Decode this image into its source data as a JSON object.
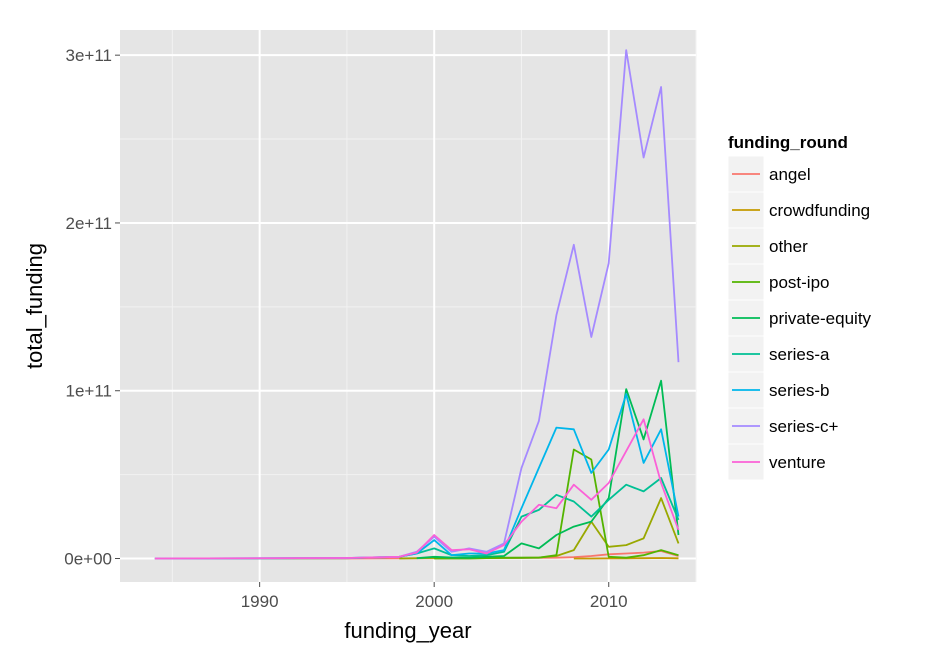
{
  "chart_data": {
    "type": "line",
    "xlabel": "funding_year",
    "ylabel": "total_funding",
    "xlim": [
      1982,
      2015
    ],
    "ylim": [
      -14000000000.0,
      315000000000.0
    ],
    "x_ticks": [
      1990,
      2000,
      2010
    ],
    "x_tick_labels": [
      "1990",
      "2000",
      "2010"
    ],
    "y_ticks": [
      0,
      100000000000,
      200000000000,
      300000000000
    ],
    "y_tick_labels": [
      "0e+00",
      "1e+11",
      "2e+11",
      "3e+11"
    ],
    "grid": true,
    "legend": {
      "title": "funding_round",
      "position": "right"
    },
    "background": "#e5e5e5",
    "grid_color": "#ffffff",
    "series": [
      {
        "name": "angel",
        "color": "#F8766D",
        "x": [
          1984,
          1990,
          1995,
          2000,
          2005,
          2007,
          2008,
          2009,
          2010,
          2011,
          2012,
          2013,
          2014
        ],
        "y": [
          0,
          0,
          0,
          200000000.0,
          300000000.0,
          500000000.0,
          800000000.0,
          1500000000.0,
          2500000000.0,
          3000000000.0,
          3500000000.0,
          4500000000.0,
          1500000000.0
        ]
      },
      {
        "name": "crowdfunding",
        "color": "#C49A00",
        "x": [
          2008,
          2009,
          2010,
          2011,
          2012,
          2013,
          2014
        ],
        "y": [
          0,
          0,
          50000000.0,
          100000000.0,
          200000000.0,
          300000000.0,
          100000000.0
        ]
      },
      {
        "name": "other",
        "color": "#99A800",
        "x": [
          1998,
          2000,
          2002,
          2004,
          2005,
          2006,
          2007,
          2008,
          2009,
          2010,
          2011,
          2012,
          2013,
          2014
        ],
        "y": [
          0,
          300000000.0,
          200000000.0,
          300000000.0,
          400000000.0,
          600000000.0,
          1500000000.0,
          5000000000.0,
          22000000000.0,
          7000000000.0,
          8000000000.0,
          12000000000.0,
          36000000000.0,
          9000000000.0
        ]
      },
      {
        "name": "post-ipo",
        "color": "#53B400",
        "x": [
          2000,
          2002,
          2004,
          2005,
          2006,
          2007,
          2008,
          2009,
          2010,
          2011,
          2012,
          2013,
          2014
        ],
        "y": [
          0,
          0,
          500000000.0,
          500000000.0,
          500000000.0,
          2000000000.0,
          65000000000.0,
          59000000000.0,
          1000000000.0,
          500000000.0,
          2000000000.0,
          5000000000.0,
          2000000000.0
        ]
      },
      {
        "name": "private-equity",
        "color": "#00BC56",
        "x": [
          1999,
          2000,
          2001,
          2002,
          2003,
          2004,
          2005,
          2006,
          2007,
          2008,
          2009,
          2010,
          2011,
          2012,
          2013,
          2014
        ],
        "y": [
          200000000.0,
          1000000000.0,
          600000000.0,
          500000000.0,
          1000000000.0,
          1500000000.0,
          9000000000.0,
          6000000000.0,
          14000000000.0,
          19000000000.0,
          22000000000.0,
          36000000000.0,
          101000000000.0,
          71000000000.0,
          106000000000.0,
          14000000000.0
        ]
      },
      {
        "name": "series-a",
        "color": "#00C094",
        "x": [
          1984,
          1995,
          1998,
          1999,
          2000,
          2001,
          2002,
          2003,
          2004,
          2005,
          2006,
          2007,
          2008,
          2009,
          2010,
          2011,
          2012,
          2013,
          2014
        ],
        "y": [
          0,
          200000000.0,
          1000000000.0,
          3000000000.0,
          6000000000.0,
          2000000000.0,
          1500000000.0,
          2000000000.0,
          4000000000.0,
          25000000000.0,
          29000000000.0,
          38000000000.0,
          34000000000.0,
          25000000000.0,
          35000000000.0,
          44000000000.0,
          40000000000.0,
          48000000000.0,
          23000000000.0
        ]
      },
      {
        "name": "series-b",
        "color": "#00B6EB",
        "x": [
          1984,
          1995,
          1998,
          1999,
          2000,
          2001,
          2002,
          2003,
          2004,
          2005,
          2006,
          2007,
          2008,
          2009,
          2010,
          2011,
          2012,
          2013,
          2014
        ],
        "y": [
          0,
          300000000.0,
          1000000000.0,
          3000000000.0,
          11000000000.0,
          2000000000.0,
          3000000000.0,
          3000000000.0,
          5000000000.0,
          30000000000.0,
          54000000000.0,
          78000000000.0,
          77000000000.0,
          51000000000.0,
          65000000000.0,
          98000000000.0,
          57000000000.0,
          77000000000.0,
          25000000000.0
        ]
      },
      {
        "name": "series-c+",
        "color": "#A58AFF",
        "x": [
          1984,
          1995,
          1998,
          1999,
          2000,
          2001,
          2002,
          2003,
          2004,
          2005,
          2006,
          2007,
          2008,
          2009,
          2010,
          2011,
          2012,
          2013,
          2014
        ],
        "y": [
          0,
          300000000.0,
          1000000000.0,
          4000000000.0,
          13000000000.0,
          4000000000.0,
          6000000000.0,
          4000000000.0,
          9000000000.0,
          54000000000.0,
          82000000000.0,
          145000000000.0,
          187000000000.0,
          132000000000.0,
          176000000000.0,
          303000000000.0,
          239000000000.0,
          281000000000.0,
          117000000000.0
        ]
      },
      {
        "name": "venture",
        "color": "#FB61D7",
        "x": [
          1984,
          1995,
          1998,
          1999,
          2000,
          2001,
          2002,
          2003,
          2004,
          2005,
          2006,
          2007,
          2008,
          2009,
          2010,
          2011,
          2012,
          2013,
          2014
        ],
        "y": [
          0,
          300000000.0,
          1000000000.0,
          3500000000.0,
          14000000000.0,
          5000000000.0,
          5500000000.0,
          3000000000.0,
          8000000000.0,
          22000000000.0,
          32000000000.0,
          30000000000.0,
          44000000000.0,
          35000000000.0,
          45000000000.0,
          64000000000.0,
          83000000000.0,
          45000000000.0,
          17000000000.0
        ]
      }
    ]
  }
}
